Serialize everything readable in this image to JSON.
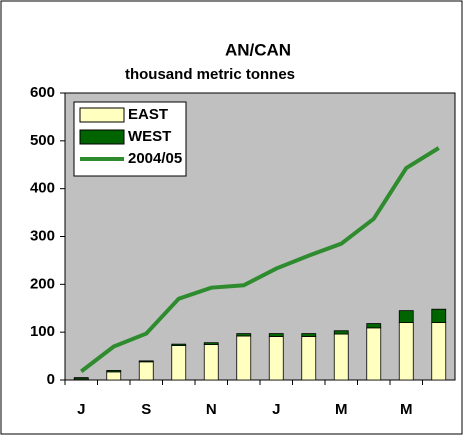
{
  "chart_data": {
    "type": "bar",
    "title": "AN/CAN",
    "subtitle": "thousand metric tonnes",
    "categories": [
      "J",
      null,
      "S",
      null,
      "N",
      null,
      "J",
      null,
      "M",
      null,
      "M",
      null
    ],
    "series": [
      {
        "name": "EAST",
        "color": "#ffffc0",
        "stack": true,
        "values": [
          2,
          17,
          38,
          72,
          74,
          92,
          91,
          91,
          96,
          109,
          120,
          120
        ]
      },
      {
        "name": "WEST",
        "color": "#006400",
        "stack": true,
        "values": [
          3,
          3,
          2,
          3,
          4,
          5,
          6,
          6,
          7,
          9,
          25,
          28
        ]
      },
      {
        "name": "2004/05",
        "color": "#2e8b2e",
        "line": true,
        "values": [
          18,
          70,
          97,
          170,
          193,
          198,
          233,
          260,
          285,
          337,
          443,
          485
        ]
      }
    ],
    "ylim": [
      0,
      600
    ],
    "yticks": [
      0,
      100,
      200,
      300,
      400,
      500,
      600
    ],
    "legend": "top-left",
    "grid": false
  }
}
